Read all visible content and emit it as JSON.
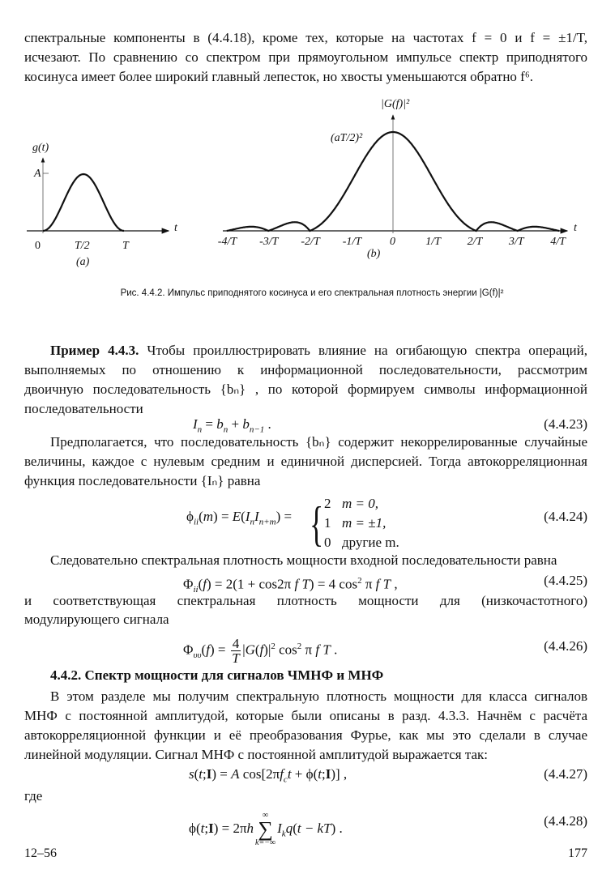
{
  "intro": {
    "lines": [
      "спектральные компоненты в (4.4.18), кроме тех, которые на частотах  f = 0  и  f = ±1/T,",
      "исчезают. По сравнению со спектром при прямоугольном импульсе спектр приподнятого",
      "косинуса имеет более широкий главный лепесток, но хвосты уменьшаются обратно  f⁶."
    ]
  },
  "figure": {
    "a": {
      "ylabel": "g(t)",
      "amplitude_label": "A",
      "xlabel": "t",
      "ticks": [
        "0",
        "T/2",
        "T"
      ],
      "panel_label": "(a)"
    },
    "b": {
      "ylabel": "|G(f)|²",
      "peak_label": "(aT/2)²",
      "xlabel": "t",
      "ticks": [
        "-4/T",
        "-3/T",
        "-2/T",
        "-1/T",
        "0",
        "1/T",
        "2/T",
        "3/T",
        "4/T"
      ],
      "panel_label": "(b)"
    },
    "caption": "Рис. 4.4.2.  Импульс приподнятого косинуса и его спектральная плотность энергии  |G(f)|²"
  },
  "example": {
    "lines": [
      [
        "Пример 4.4.3.",
        " Чтобы проиллюстрировать влияние на огибающую спектра операций,"
      ],
      [
        "",
        "выполняемых по отношению к информационной последовательности, рассмотрим"
      ],
      [
        "",
        "двоичную последовательность  {bₙ} , по которой формируем символы информационной"
      ],
      [
        "",
        "последовательности"
      ]
    ]
  },
  "para2": {
    "lines": [
      "Предполагается, что последовательность {bₙ} содержит некоррелированные случайные",
      "величины, каждое с нулевым средним и единичной дисперсией. Тогда автокорреляционная",
      "функция последовательности {Iₙ} равна"
    ]
  },
  "cases": [
    [
      "2",
      "m = 0,"
    ],
    [
      "1",
      "m = ±1,"
    ],
    [
      "0",
      "другие m."
    ]
  ],
  "para3": {
    "lines": [
      "Следовательно спектральная плотность мощности входной последовательности равна"
    ]
  },
  "para4": {
    "lines": [
      "и соответствующая спектральная плотность мощности для (низкочастотного)",
      "модулирующего сигнала"
    ]
  },
  "heading": "4.4.2. Спектр мощности для сигналов ЧМНФ и МНФ",
  "para5": {
    "lines": [
      "В этом разделе мы получим спектральную плотность мощности для класса сигналов",
      "МНФ с постоянной амплитудой, которые были описаны в разд. 4.3.3. Начнём с расчёта",
      "автокорреляционной функции и её преобразования Фурье, как мы это сделали в случае",
      "линейной модуляции. Сигнал МНФ с постоянной амплитудой выражается так:"
    ]
  },
  "where": "где",
  "equations": {
    "e23": {
      "number": "(4.4.23)",
      "parts": [
        [
          "I",
          "i"
        ],
        [
          "n",
          "sub"
        ],
        [
          " = ",
          "n"
        ],
        [
          "b",
          "i"
        ],
        [
          "n",
          "sub"
        ],
        [
          " + ",
          "n"
        ],
        [
          "b",
          "i"
        ],
        [
          "n−1",
          "sub"
        ],
        [
          " .",
          "n"
        ]
      ]
    },
    "e24": {
      "number": "(4.4.24)",
      "parts": [
        [
          "ϕ",
          "n"
        ],
        [
          "ii",
          "sub"
        ],
        [
          "(",
          "n"
        ],
        [
          "m",
          "i"
        ],
        [
          ") = ",
          "n"
        ],
        [
          "E",
          "i"
        ],
        [
          "(",
          "n"
        ],
        [
          "I",
          "i"
        ],
        [
          "n",
          "sub"
        ],
        [
          "I",
          "i"
        ],
        [
          "n+m",
          "sub"
        ],
        [
          ") =",
          "n"
        ]
      ]
    },
    "e25": {
      "number": "(4.4.25)",
      "parts": [
        [
          "Φ",
          "n"
        ],
        [
          "ii",
          "sub"
        ],
        [
          "(",
          "n"
        ],
        [
          "f",
          "i"
        ],
        [
          ") = 2(1 + cos2π ",
          "n"
        ],
        [
          "f T",
          "i"
        ],
        [
          ") = 4 cos",
          "n"
        ],
        [
          "2",
          "sup"
        ],
        [
          " π ",
          "n"
        ],
        [
          "f T",
          "i"
        ],
        [
          " ,",
          "n"
        ]
      ]
    },
    "e26": {
      "number": "(4.4.26)",
      "parts": [
        [
          "Φ",
          "n"
        ],
        [
          "υυ",
          "sub"
        ],
        [
          "(",
          "n"
        ],
        [
          "f",
          "i"
        ],
        [
          ") = ",
          "n"
        ],
        [
          [
            "4",
            "T"
          ],
          "frac"
        ],
        [
          "|",
          "n"
        ],
        [
          "G",
          "i"
        ],
        [
          "(",
          "n"
        ],
        [
          "f",
          "i"
        ],
        [
          ")|",
          "n"
        ],
        [
          "2",
          "sup"
        ],
        [
          " cos",
          "n"
        ],
        [
          "2",
          "sup"
        ],
        [
          " π ",
          "n"
        ],
        [
          "f T",
          "i"
        ],
        [
          " .",
          "n"
        ]
      ]
    },
    "e27": {
      "number": "(4.4.27)",
      "parts": [
        [
          "s",
          "i"
        ],
        [
          "(",
          "n"
        ],
        [
          "t",
          "i"
        ],
        [
          ";",
          "n"
        ],
        [
          "I",
          "b"
        ],
        [
          ") = ",
          "n"
        ],
        [
          "A",
          "i"
        ],
        [
          " cos[2π",
          "n"
        ],
        [
          "f",
          "i"
        ],
        [
          "c",
          "sub"
        ],
        [
          "t",
          "i"
        ],
        [
          " + ϕ(",
          "n"
        ],
        [
          "t",
          "i"
        ],
        [
          ";",
          "n"
        ],
        [
          "I",
          "b"
        ],
        [
          ")] ,",
          "n"
        ]
      ]
    },
    "e28": {
      "number": "(4.4.28)",
      "parts": [
        [
          "ϕ(",
          "n"
        ],
        [
          "t",
          "i"
        ],
        [
          ";",
          "n"
        ],
        [
          "I",
          "b"
        ],
        [
          ") = 2π",
          "n"
        ],
        [
          "h",
          "i"
        ],
        [
          [
            "∞",
            "k=−∞"
          ],
          "sum"
        ],
        [
          "I",
          "i"
        ],
        [
          "k",
          "sub"
        ],
        [
          "q",
          "i"
        ],
        [
          "(",
          "n"
        ],
        [
          "t − kT",
          "i"
        ],
        [
          ") .",
          "n"
        ]
      ]
    }
  },
  "footer": {
    "signature": "12–56",
    "page_number": "177"
  }
}
